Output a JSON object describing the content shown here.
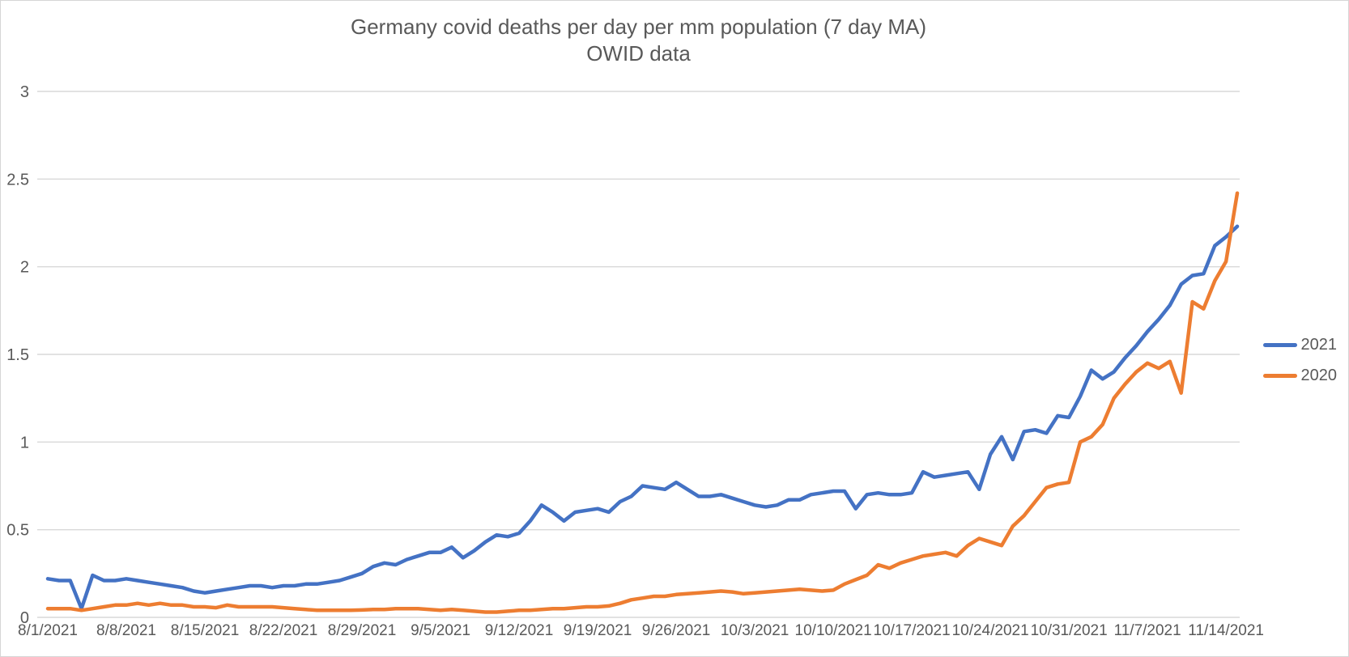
{
  "window": {
    "background": "#ffffff",
    "border_color": "#d6d6d6"
  },
  "chart_data": {
    "type": "line",
    "title": "Germany covid deaths per day per mm population (7 day MA)",
    "subtitle": "OWID data",
    "title_color": "#595959",
    "axis_label_color": "#595959",
    "gridline_color": "#d9d9d9",
    "grid": "horizontal",
    "legend_position": "right",
    "xlabel": "",
    "ylabel": "",
    "ylim": [
      0,
      3
    ],
    "yticks": [
      0,
      0.5,
      1,
      1.5,
      2,
      2.5,
      3
    ],
    "x_start_date": "8/1/2021",
    "x_frequency": "daily",
    "x_tick_interval_days": 7,
    "x_tick_labels": [
      "8/1/2021",
      "8/8/2021",
      "8/15/2021",
      "8/22/2021",
      "8/29/2021",
      "9/5/2021",
      "9/12/2021",
      "9/19/2021",
      "9/26/2021",
      "10/3/2021",
      "10/10/2021",
      "10/17/2021",
      "10/24/2021",
      "10/31/2021",
      "11/7/2021",
      "11/14/2021"
    ],
    "series": [
      {
        "name": "2021",
        "color": "#4472C4",
        "values": [
          0.22,
          0.21,
          0.21,
          0.05,
          0.24,
          0.21,
          0.21,
          0.22,
          0.21,
          0.2,
          0.19,
          0.18,
          0.17,
          0.15,
          0.14,
          0.15,
          0.16,
          0.17,
          0.18,
          0.18,
          0.17,
          0.18,
          0.18,
          0.19,
          0.19,
          0.2,
          0.21,
          0.23,
          0.25,
          0.29,
          0.31,
          0.3,
          0.33,
          0.35,
          0.37,
          0.37,
          0.4,
          0.34,
          0.38,
          0.43,
          0.47,
          0.46,
          0.48,
          0.55,
          0.64,
          0.6,
          0.55,
          0.6,
          0.61,
          0.62,
          0.6,
          0.66,
          0.69,
          0.75,
          0.74,
          0.73,
          0.77,
          0.73,
          0.69,
          0.69,
          0.7,
          0.68,
          0.66,
          0.64,
          0.63,
          0.64,
          0.67,
          0.67,
          0.7,
          0.71,
          0.72,
          0.72,
          0.62,
          0.7,
          0.71,
          0.7,
          0.7,
          0.71,
          0.83,
          0.8,
          0.81,
          0.82,
          0.83,
          0.73,
          0.93,
          1.03,
          0.9,
          1.06,
          1.07,
          1.05,
          1.15,
          1.14,
          1.26,
          1.41,
          1.36,
          1.4,
          1.48,
          1.55,
          1.63,
          1.7,
          1.78,
          1.9,
          1.95,
          1.96,
          2.12,
          2.17,
          2.23
        ]
      },
      {
        "name": "2020",
        "color": "#ED7D31",
        "values": [
          0.05,
          0.05,
          0.05,
          0.04,
          0.05,
          0.06,
          0.07,
          0.07,
          0.08,
          0.07,
          0.08,
          0.07,
          0.07,
          0.06,
          0.06,
          0.055,
          0.07,
          0.06,
          0.06,
          0.06,
          0.06,
          0.055,
          0.05,
          0.045,
          0.04,
          0.04,
          0.04,
          0.04,
          0.042,
          0.045,
          0.045,
          0.05,
          0.05,
          0.05,
          0.045,
          0.04,
          0.045,
          0.04,
          0.035,
          0.03,
          0.03,
          0.035,
          0.04,
          0.04,
          0.045,
          0.05,
          0.05,
          0.055,
          0.06,
          0.06,
          0.065,
          0.08,
          0.1,
          0.11,
          0.12,
          0.12,
          0.13,
          0.135,
          0.14,
          0.145,
          0.15,
          0.145,
          0.135,
          0.14,
          0.145,
          0.15,
          0.155,
          0.16,
          0.155,
          0.15,
          0.155,
          0.19,
          0.215,
          0.24,
          0.3,
          0.28,
          0.31,
          0.33,
          0.35,
          0.36,
          0.37,
          0.35,
          0.41,
          0.45,
          0.43,
          0.41,
          0.52,
          0.58,
          0.66,
          0.74,
          0.76,
          0.77,
          1.0,
          1.03,
          1.1,
          1.25,
          1.33,
          1.4,
          1.45,
          1.42,
          1.46,
          1.28,
          1.8,
          1.76,
          1.92,
          2.03,
          2.42
        ]
      }
    ]
  },
  "legend": {
    "items": [
      {
        "label": "2021",
        "color": "#4472C4"
      },
      {
        "label": "2020",
        "color": "#ED7D31"
      }
    ]
  }
}
